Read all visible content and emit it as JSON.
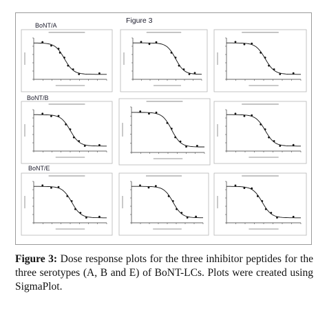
{
  "figure": {
    "title": "Figure 3",
    "groups": [
      "BoNT/A",
      "BoNT/B",
      "BoNT/E"
    ]
  },
  "caption": {
    "label": "Figure 3:",
    "text": "Dose response plots for the three inhibitor peptides for the three serotypes (A, B and E) of BoNT-LCs. Plots were created using SigmaPlot."
  }
}
